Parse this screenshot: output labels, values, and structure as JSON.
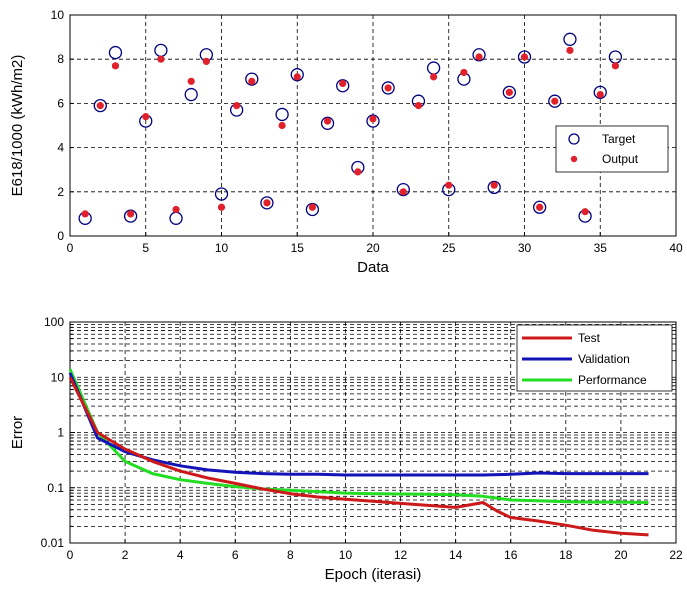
{
  "chart_data": [
    {
      "type": "scatter",
      "title": "",
      "xlabel": "Data",
      "ylabel": "E618/1000 (kWh/m2)",
      "xlim": [
        0,
        40
      ],
      "ylim": [
        0,
        10
      ],
      "xticks": [
        "0",
        "5",
        "10",
        "15",
        "20",
        "25",
        "30",
        "35",
        "40"
      ],
      "yticks": [
        "0",
        "2",
        "4",
        "6",
        "8",
        "10"
      ],
      "grid": true,
      "legend_position": "right",
      "series": [
        {
          "name": "Target",
          "marker": "open-circle",
          "color": "#00007f",
          "x": [
            1,
            2,
            3,
            4,
            5,
            6,
            7,
            8,
            9,
            10,
            11,
            12,
            13,
            14,
            15,
            16,
            17,
            18,
            19,
            20,
            21,
            22,
            23,
            24,
            25,
            26,
            27,
            28,
            29,
            30,
            31,
            32,
            33,
            34,
            35,
            36
          ],
          "y": [
            0.8,
            5.9,
            8.3,
            0.9,
            5.2,
            8.4,
            0.8,
            6.4,
            8.2,
            1.9,
            5.7,
            7.1,
            1.5,
            5.5,
            7.3,
            1.2,
            5.1,
            6.8,
            3.1,
            5.2,
            6.7,
            2.1,
            6.1,
            7.6,
            2.1,
            7.1,
            8.2,
            2.2,
            6.5,
            8.1,
            1.3,
            6.1,
            8.9,
            0.9,
            6.5,
            8.1
          ]
        },
        {
          "name": "Output",
          "marker": "asterisk",
          "color": "#e0202a",
          "x": [
            1,
            2,
            3,
            4,
            5,
            6,
            7,
            8,
            9,
            10,
            11,
            12,
            13,
            14,
            15,
            16,
            17,
            18,
            19,
            20,
            21,
            22,
            23,
            24,
            25,
            26,
            27,
            28,
            29,
            30,
            31,
            32,
            33,
            34,
            35,
            36
          ],
          "y": [
            1.0,
            5.9,
            7.7,
            1.0,
            5.4,
            8.0,
            1.2,
            7.0,
            7.9,
            1.3,
            5.9,
            7.0,
            1.5,
            5.0,
            7.2,
            1.3,
            5.2,
            6.9,
            2.9,
            5.3,
            6.7,
            2.0,
            5.9,
            7.2,
            2.3,
            7.4,
            8.1,
            2.3,
            6.5,
            8.1,
            1.3,
            6.1,
            8.4,
            1.1,
            6.4,
            7.7
          ]
        }
      ]
    },
    {
      "type": "line",
      "title": "",
      "xlabel": "Epoch (iterasi)",
      "ylabel": "Error",
      "xlim": [
        0,
        22
      ],
      "ylim": [
        0.01,
        100
      ],
      "yscale": "log",
      "xticks": [
        "0",
        "2",
        "4",
        "6",
        "8",
        "10",
        "12",
        "14",
        "16",
        "18",
        "20",
        "22"
      ],
      "yticks": [
        "0.01",
        "0.1",
        "1",
        "10",
        "100"
      ],
      "grid": true,
      "legend_position": "top-right",
      "series": [
        {
          "name": "Test",
          "color": "#cc1a1a",
          "x": [
            0,
            1,
            2,
            3,
            4,
            5,
            6,
            7,
            8,
            9,
            10,
            11,
            12,
            13,
            14,
            15,
            15.5,
            16,
            17,
            18,
            19,
            20,
            21
          ],
          "y": [
            10,
            1.0,
            0.5,
            0.3,
            0.2,
            0.15,
            0.12,
            0.095,
            0.078,
            0.068,
            0.062,
            0.057,
            0.052,
            0.048,
            0.044,
            0.054,
            0.038,
            0.029,
            0.025,
            0.021,
            0.017,
            0.015,
            0.014
          ]
        },
        {
          "name": "Validation",
          "color": "#1313b8",
          "x": [
            0,
            1,
            2,
            3,
            4,
            5,
            6,
            7,
            8,
            9,
            10,
            11,
            12,
            13,
            14,
            15,
            16,
            17,
            18,
            19,
            20,
            21
          ],
          "y": [
            12,
            0.8,
            0.45,
            0.32,
            0.25,
            0.21,
            0.19,
            0.18,
            0.175,
            0.175,
            0.17,
            0.17,
            0.17,
            0.17,
            0.17,
            0.17,
            0.175,
            0.185,
            0.18,
            0.18,
            0.18,
            0.18
          ]
        },
        {
          "name": "Performance",
          "color": "#22dd22",
          "x": [
            0,
            1,
            2,
            3,
            4,
            5,
            6,
            7,
            8,
            9,
            10,
            11,
            12,
            13,
            14,
            15,
            16,
            17,
            18,
            19,
            20,
            21
          ],
          "y": [
            14,
            1.0,
            0.3,
            0.18,
            0.14,
            0.12,
            0.105,
            0.095,
            0.09,
            0.085,
            0.08,
            0.078,
            0.077,
            0.076,
            0.075,
            0.07,
            0.06,
            0.058,
            0.056,
            0.055,
            0.055,
            0.054
          ]
        }
      ]
    }
  ]
}
